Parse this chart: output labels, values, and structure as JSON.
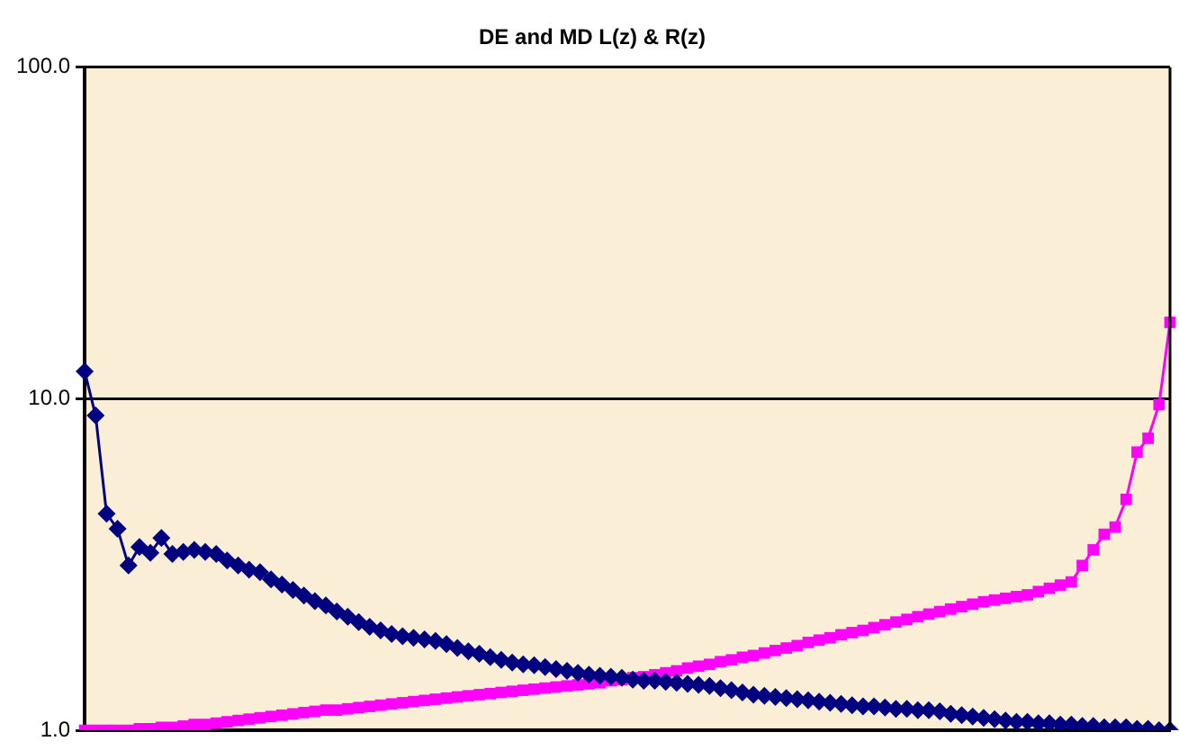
{
  "chart_data": {
    "type": "line",
    "title": "DE and MD L(z) & R(z)",
    "categories": [
      null,
      null,
      null,
      null,
      null,
      null,
      null,
      null,
      null,
      null,
      null,
      null,
      null,
      null,
      null,
      null,
      null,
      null,
      null,
      null,
      null,
      null,
      null,
      null,
      null,
      null,
      null,
      null,
      null,
      null,
      null,
      null,
      null,
      null,
      null,
      null,
      null,
      null,
      null,
      null,
      null,
      null,
      null,
      null,
      null,
      null,
      null,
      null,
      null,
      null,
      null,
      null,
      null,
      null,
      null,
      null,
      null,
      null,
      null,
      null,
      null,
      null,
      null,
      null,
      null,
      null,
      null,
      null,
      null,
      null,
      null,
      null,
      null,
      null,
      null,
      null,
      null,
      null,
      null,
      null,
      null,
      null,
      null,
      null,
      null,
      null,
      null,
      null,
      null,
      null,
      null,
      null,
      null,
      null,
      null,
      null,
      null,
      null,
      null,
      null
    ],
    "series": [
      {
        "color": "#000080",
        "marker": "diamond",
        "values": [
          12.1,
          8.9,
          4.5,
          4.05,
          3.14,
          3.57,
          3.43,
          3.8,
          3.4,
          3.45,
          3.5,
          3.45,
          3.4,
          3.25,
          3.14,
          3.05,
          3.0,
          2.85,
          2.75,
          2.65,
          2.55,
          2.45,
          2.38,
          2.28,
          2.2,
          2.12,
          2.05,
          2.0,
          1.95,
          1.92,
          1.9,
          1.88,
          1.86,
          1.82,
          1.77,
          1.73,
          1.7,
          1.66,
          1.63,
          1.6,
          1.58,
          1.57,
          1.55,
          1.53,
          1.51,
          1.49,
          1.47,
          1.46,
          1.45,
          1.44,
          1.42,
          1.41,
          1.41,
          1.4,
          1.39,
          1.38,
          1.37,
          1.36,
          1.34,
          1.32,
          1.3,
          1.28,
          1.27,
          1.26,
          1.25,
          1.24,
          1.23,
          1.22,
          1.21,
          1.2,
          1.19,
          1.18,
          1.18,
          1.17,
          1.16,
          1.16,
          1.15,
          1.15,
          1.14,
          1.12,
          1.11,
          1.1,
          1.09,
          1.08,
          1.07,
          1.06,
          1.06,
          1.05,
          1.05,
          1.04,
          1.04,
          1.03,
          1.03,
          1.02,
          1.02,
          1.02,
          1.01,
          1.01,
          1.0,
          1.0
        ]
      },
      {
        "color": "#ff00ff",
        "marker": "square",
        "values": [
          1.0,
          1.0,
          1.0,
          1.0,
          1.0,
          1.01,
          1.01,
          1.02,
          1.02,
          1.03,
          1.04,
          1.04,
          1.05,
          1.06,
          1.07,
          1.08,
          1.09,
          1.1,
          1.11,
          1.12,
          1.13,
          1.14,
          1.15,
          1.15,
          1.16,
          1.17,
          1.18,
          1.19,
          1.2,
          1.21,
          1.22,
          1.23,
          1.24,
          1.25,
          1.26,
          1.27,
          1.28,
          1.29,
          1.3,
          1.31,
          1.32,
          1.33,
          1.34,
          1.35,
          1.36,
          1.37,
          1.38,
          1.39,
          1.41,
          1.42,
          1.44,
          1.45,
          1.47,
          1.49,
          1.51,
          1.54,
          1.56,
          1.58,
          1.61,
          1.63,
          1.66,
          1.68,
          1.71,
          1.74,
          1.77,
          1.8,
          1.84,
          1.87,
          1.9,
          1.94,
          1.97,
          2.0,
          2.04,
          2.08,
          2.12,
          2.16,
          2.2,
          2.24,
          2.28,
          2.32,
          2.36,
          2.4,
          2.44,
          2.47,
          2.5,
          2.53,
          2.56,
          2.62,
          2.68,
          2.74,
          2.8,
          3.14,
          3.5,
          3.9,
          4.1,
          4.97,
          6.9,
          7.6,
          9.6,
          17.0
        ]
      }
    ],
    "log": "y",
    "ylim": [
      1,
      100
    ],
    "yticks": [
      {
        "value": 1,
        "label": "1.0"
      },
      {
        "value": 10,
        "label": "10.0"
      },
      {
        "value": 100,
        "label": "100.0"
      }
    ],
    "grid": "y",
    "tick_labels": "y"
  }
}
